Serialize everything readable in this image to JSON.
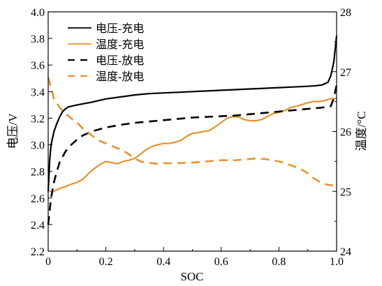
{
  "chart_data": {
    "type": "line",
    "xlabel": "SOC",
    "ylabel_left": "电压/V",
    "ylabel_right": "温度/°C",
    "xlim": [
      0,
      1
    ],
    "ylim_left": [
      2.2,
      4.0
    ],
    "ylim_right": [
      24,
      28
    ],
    "x_ticks": [
      "0",
      "0.2",
      "0.4",
      "0.6",
      "0.8",
      "1.0"
    ],
    "y_left_ticks": [
      "2.2",
      "2.4",
      "2.6",
      "2.8",
      "3.0",
      "3.2",
      "3.4",
      "3.6",
      "3.8",
      "4.0"
    ],
    "y_right_ticks": [
      "24",
      "25",
      "26",
      "27",
      "28"
    ],
    "grid": false,
    "legend_position": "top-left",
    "colors": {
      "voltage": "#000000",
      "temperature": "#e8922b"
    },
    "series": [
      {
        "name": "电压-充电",
        "axis": "left",
        "style": "solid",
        "color": "#000000",
        "x": [
          0.0,
          0.005,
          0.01,
          0.02,
          0.03,
          0.04,
          0.05,
          0.06,
          0.07,
          0.08,
          0.1,
          0.15,
          0.2,
          0.25,
          0.3,
          0.35,
          0.4,
          0.45,
          0.5,
          0.55,
          0.6,
          0.65,
          0.7,
          0.75,
          0.8,
          0.85,
          0.9,
          0.93,
          0.95,
          0.97,
          0.98,
          0.99,
          1.0
        ],
        "y": [
          2.65,
          2.88,
          3.0,
          3.1,
          3.16,
          3.21,
          3.25,
          3.27,
          3.285,
          3.29,
          3.3,
          3.32,
          3.345,
          3.36,
          3.375,
          3.385,
          3.39,
          3.395,
          3.4,
          3.405,
          3.41,
          3.415,
          3.42,
          3.425,
          3.43,
          3.435,
          3.44,
          3.445,
          3.45,
          3.47,
          3.52,
          3.62,
          3.82
        ]
      },
      {
        "name": "温度-充电",
        "axis": "right",
        "style": "solid",
        "color": "#e8922b",
        "x": [
          0.0,
          0.02,
          0.04,
          0.06,
          0.08,
          0.1,
          0.12,
          0.14,
          0.16,
          0.18,
          0.2,
          0.22,
          0.24,
          0.26,
          0.28,
          0.3,
          0.32,
          0.34,
          0.36,
          0.38,
          0.4,
          0.42,
          0.44,
          0.46,
          0.48,
          0.5,
          0.52,
          0.54,
          0.56,
          0.58,
          0.6,
          0.62,
          0.64,
          0.66,
          0.68,
          0.7,
          0.72,
          0.74,
          0.76,
          0.78,
          0.8,
          0.82,
          0.84,
          0.86,
          0.88,
          0.9,
          0.92,
          0.94,
          0.96,
          0.98,
          1.0
        ],
        "y": [
          25.0,
          25.0,
          25.05,
          25.08,
          25.12,
          25.15,
          25.2,
          25.3,
          25.38,
          25.45,
          25.5,
          25.48,
          25.46,
          25.5,
          25.52,
          25.55,
          25.62,
          25.7,
          25.75,
          25.78,
          25.8,
          25.8,
          25.82,
          25.85,
          25.92,
          25.97,
          25.98,
          26.0,
          26.02,
          26.08,
          26.15,
          26.22,
          26.25,
          26.24,
          26.2,
          26.18,
          26.18,
          26.2,
          26.25,
          26.3,
          26.32,
          26.35,
          26.4,
          26.42,
          26.45,
          26.48,
          26.5,
          26.5,
          26.52,
          26.55,
          26.55
        ]
      },
      {
        "name": "电压-放电",
        "axis": "left",
        "style": "dashed",
        "color": "#000000",
        "x": [
          0.0,
          0.01,
          0.02,
          0.03,
          0.04,
          0.06,
          0.08,
          0.1,
          0.12,
          0.15,
          0.2,
          0.25,
          0.3,
          0.35,
          0.4,
          0.45,
          0.5,
          0.55,
          0.6,
          0.65,
          0.7,
          0.75,
          0.8,
          0.85,
          0.9,
          0.95,
          0.98,
          0.99,
          1.0
        ],
        "y": [
          2.4,
          2.6,
          2.72,
          2.8,
          2.87,
          2.95,
          3.0,
          3.04,
          3.07,
          3.1,
          3.13,
          3.15,
          3.165,
          3.175,
          3.185,
          3.195,
          3.205,
          3.21,
          3.215,
          3.22,
          3.23,
          3.24,
          3.25,
          3.26,
          3.27,
          3.28,
          3.29,
          3.35,
          3.45
        ]
      },
      {
        "name": "温度-放电",
        "axis": "right",
        "style": "dashed",
        "color": "#e8922b",
        "x": [
          0.0,
          0.02,
          0.04,
          0.06,
          0.08,
          0.1,
          0.12,
          0.14,
          0.16,
          0.18,
          0.2,
          0.22,
          0.24,
          0.26,
          0.28,
          0.3,
          0.32,
          0.34,
          0.36,
          0.38,
          0.4,
          0.45,
          0.5,
          0.55,
          0.6,
          0.65,
          0.7,
          0.72,
          0.75,
          0.8,
          0.82,
          0.85,
          0.88,
          0.9,
          0.92,
          0.94,
          0.96,
          0.98,
          1.0
        ],
        "y": [
          26.9,
          26.55,
          26.4,
          26.3,
          26.22,
          26.15,
          26.05,
          25.98,
          25.9,
          25.84,
          25.8,
          25.76,
          25.72,
          25.68,
          25.62,
          25.55,
          25.5,
          25.48,
          25.47,
          25.46,
          25.47,
          25.47,
          25.48,
          25.5,
          25.52,
          25.52,
          25.54,
          25.55,
          25.54,
          25.5,
          25.47,
          25.42,
          25.36,
          25.3,
          25.22,
          25.16,
          25.12,
          25.1,
          25.12
        ]
      }
    ]
  }
}
